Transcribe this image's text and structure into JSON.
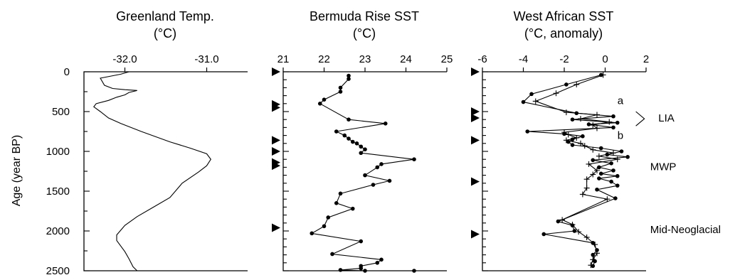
{
  "chart_data": [
    {
      "type": "line",
      "title": [
        "Greenland Temp.",
        "(°C)"
      ],
      "ylabel": "Age (year BP)",
      "xlim": [
        -32.5,
        -30.5
      ],
      "x_ticks": [
        -32.0,
        -31.0
      ],
      "x_tick_labels": [
        "-32.0",
        "-31.0"
      ],
      "ylim": [
        0,
        2500
      ],
      "y_ticks": [
        0,
        500,
        1000,
        1500,
        2000,
        2500
      ],
      "y_tick_labels": [
        "0",
        "500",
        "1000",
        "1500",
        "2000",
        "2500"
      ],
      "y_reversed": true,
      "series": [
        {
          "marker": "none",
          "points": [
            [
              -31.95,
              0
            ],
            [
              -32.05,
              30
            ],
            [
              -32.3,
              80
            ],
            [
              -32.25,
              170
            ],
            [
              -32.15,
              210
            ],
            [
              -32.0,
              225
            ],
            [
              -31.85,
              235
            ],
            [
              -31.95,
              260
            ],
            [
              -32.0,
              290
            ],
            [
              -32.1,
              320
            ],
            [
              -32.2,
              360
            ],
            [
              -32.35,
              400
            ],
            [
              -32.38,
              440
            ],
            [
              -32.3,
              500
            ],
            [
              -32.2,
              580
            ],
            [
              -32.05,
              650
            ],
            [
              -31.8,
              750
            ],
            [
              -31.45,
              880
            ],
            [
              -31.2,
              960
            ],
            [
              -31.0,
              1030
            ],
            [
              -30.95,
              1100
            ],
            [
              -31.0,
              1180
            ],
            [
              -31.1,
              1260
            ],
            [
              -31.3,
              1400
            ],
            [
              -31.45,
              1580
            ],
            [
              -31.65,
              1700
            ],
            [
              -31.85,
              1820
            ],
            [
              -32.0,
              1930
            ],
            [
              -32.1,
              2050
            ],
            [
              -32.1,
              2120
            ],
            [
              -32.05,
              2190
            ],
            [
              -32.0,
              2260
            ],
            [
              -31.95,
              2350
            ],
            [
              -31.9,
              2450
            ],
            [
              -31.85,
              2500
            ]
          ]
        }
      ],
      "marker_arrows": []
    },
    {
      "type": "line",
      "title": [
        "Bermuda Rise SST",
        "(°C)"
      ],
      "xlim": [
        21,
        25
      ],
      "x_ticks": [
        21,
        22,
        23,
        24,
        25
      ],
      "x_tick_labels": [
        "21",
        "22",
        "23",
        "24",
        "25"
      ],
      "ylim": [
        0,
        2500
      ],
      "y_reversed": true,
      "series": [
        {
          "marker": "dot",
          "points": [
            [
              22.6,
              50
            ],
            [
              22.6,
              90
            ],
            [
              22.4,
              200
            ],
            [
              22.4,
              250
            ],
            [
              22.0,
              350
            ],
            [
              21.9,
              400
            ],
            [
              22.6,
              600
            ],
            [
              23.5,
              650
            ],
            [
              22.3,
              750
            ],
            [
              22.5,
              800
            ],
            [
              22.6,
              840
            ],
            [
              22.7,
              880
            ],
            [
              22.8,
              900
            ],
            [
              22.9,
              940
            ],
            [
              23.0,
              975
            ],
            [
              22.9,
              1020
            ],
            [
              24.2,
              1100
            ],
            [
              23.4,
              1160
            ],
            [
              23.3,
              1200
            ],
            [
              23.0,
              1300
            ],
            [
              23.6,
              1370
            ],
            [
              23.2,
              1420
            ],
            [
              22.4,
              1530
            ],
            [
              22.3,
              1650
            ],
            [
              22.7,
              1720
            ],
            [
              22.1,
              1830
            ],
            [
              22.0,
              1940
            ],
            [
              21.7,
              2030
            ],
            [
              22.9,
              2130
            ],
            [
              22.2,
              2290
            ],
            [
              23.4,
              2360
            ],
            [
              23.3,
              2400
            ],
            [
              22.9,
              2440
            ],
            [
              22.9,
              2470
            ],
            [
              22.4,
              2490
            ],
            [
              23.0,
              2500
            ],
            [
              24.2,
              2500
            ]
          ]
        }
      ],
      "marker_arrows": [
        0,
        410,
        450,
        860,
        1000,
        1140,
        1180,
        1960
      ]
    },
    {
      "type": "line",
      "title": [
        "West African SST",
        "(°C, anomaly)"
      ],
      "xlim": [
        -6,
        2
      ],
      "x_ticks": [
        -6,
        -4,
        -2,
        0,
        2
      ],
      "x_tick_labels": [
        "-6",
        "-4",
        "-2",
        "0",
        "2"
      ],
      "ylim": [
        0,
        2500
      ],
      "y_reversed": true,
      "series": [
        {
          "name": "a",
          "marker": "dot",
          "points": [
            [
              -0.2,
              40
            ],
            [
              -1.9,
              160
            ],
            [
              -3.6,
              280
            ],
            [
              -4.0,
              380
            ],
            [
              -1.4,
              520
            ],
            [
              0.4,
              560
            ],
            [
              -1.6,
              600
            ],
            [
              0.6,
              640
            ],
            [
              -0.8,
              660
            ],
            [
              0.4,
              700
            ],
            [
              -3.8,
              750
            ],
            [
              -2.0,
              780
            ],
            [
              -1.1,
              810
            ],
            [
              -1.6,
              850
            ],
            [
              -1.8,
              880
            ],
            [
              -1.6,
              920
            ],
            [
              -0.2,
              960
            ],
            [
              0.8,
              1000
            ],
            [
              0.1,
              1040
            ],
            [
              1.1,
              1070
            ],
            [
              -0.6,
              1110
            ],
            [
              0.3,
              1150
            ],
            [
              -0.3,
              1200
            ],
            [
              0.4,
              1240
            ],
            [
              -0.2,
              1280
            ],
            [
              0.6,
              1310
            ],
            [
              -0.3,
              1340
            ],
            [
              0.3,
              1380
            ],
            [
              0.6,
              1430
            ],
            [
              -0.4,
              1480
            ],
            [
              0.5,
              1590
            ],
            [
              -2.3,
              1880
            ],
            [
              -1.6,
              1930
            ],
            [
              -1.5,
              2000
            ],
            [
              -3.0,
              2040
            ],
            [
              -0.6,
              2150
            ],
            [
              -0.4,
              2240
            ],
            [
              -0.6,
              2300
            ],
            [
              -0.5,
              2380
            ],
            [
              -0.6,
              2440
            ]
          ]
        },
        {
          "name": "b",
          "marker": "cross",
          "points": [
            [
              -0.1,
              40
            ],
            [
              -1.4,
              160
            ],
            [
              -2.4,
              270
            ],
            [
              -3.4,
              370
            ],
            [
              -1.9,
              510
            ],
            [
              -0.4,
              540
            ],
            [
              -1.2,
              590
            ],
            [
              0.2,
              630
            ],
            [
              -0.6,
              670
            ],
            [
              -0.4,
              710
            ],
            [
              -2.0,
              760
            ],
            [
              -1.8,
              790
            ],
            [
              -1.4,
              830
            ],
            [
              -1.9,
              860
            ],
            [
              -1.2,
              900
            ],
            [
              -1.0,
              930
            ],
            [
              -0.6,
              980
            ],
            [
              0.4,
              1020
            ],
            [
              -0.3,
              1060
            ],
            [
              0.6,
              1100
            ],
            [
              -0.8,
              1160
            ],
            [
              -0.4,
              1240
            ],
            [
              -0.6,
              1290
            ],
            [
              -0.9,
              1350
            ],
            [
              -0.9,
              1460
            ],
            [
              -1.1,
              1540
            ],
            [
              0.1,
              1600
            ],
            [
              -2.1,
              1860
            ],
            [
              -1.6,
              1920
            ],
            [
              -1.3,
              2010
            ],
            [
              -0.9,
              2080
            ],
            [
              -0.5,
              2170
            ],
            [
              -0.4,
              2280
            ],
            [
              -0.6,
              2360
            ],
            [
              -0.7,
              2430
            ]
          ]
        }
      ],
      "marker_arrows": [
        0,
        500,
        580,
        860,
        1380,
        2040
      ],
      "annotations": [
        {
          "text": "a",
          "x": 0.6,
          "y": 360
        },
        {
          "text": "b",
          "x": 0.6,
          "y": 800
        },
        {
          "text": "LIA",
          "x": 2.6,
          "y": 580
        },
        {
          "text": "MWP",
          "x": 2.2,
          "y": 1190
        },
        {
          "text": "Mid-Neoglacial",
          "x": 2.2,
          "y": 1980
        }
      ],
      "bracket": {
        "x": 1.5,
        "y_top": 500,
        "y_bottom": 680
      }
    }
  ]
}
